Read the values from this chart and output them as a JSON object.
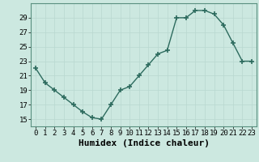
{
  "x": [
    0,
    1,
    2,
    3,
    4,
    5,
    6,
    7,
    8,
    9,
    10,
    11,
    12,
    13,
    14,
    15,
    16,
    17,
    18,
    19,
    20,
    21,
    22,
    23
  ],
  "y": [
    22,
    20,
    19,
    18,
    17,
    16,
    15.2,
    15,
    17,
    19,
    19.5,
    21,
    22.5,
    24,
    24.5,
    29,
    29,
    30,
    30,
    29.5,
    28,
    25.5,
    23,
    23
  ],
  "line_color": "#2d6b5e",
  "marker_color": "#2d6b5e",
  "bg_color": "#cce8e0",
  "grid_color": "#b8d8d0",
  "xlabel": "Humidex (Indice chaleur)",
  "ylim": [
    14,
    31
  ],
  "yticks": [
    15,
    17,
    19,
    21,
    23,
    25,
    27,
    29
  ],
  "xlim": [
    -0.5,
    23.5
  ],
  "xticks": [
    0,
    1,
    2,
    3,
    4,
    5,
    6,
    7,
    8,
    9,
    10,
    11,
    12,
    13,
    14,
    15,
    16,
    17,
    18,
    19,
    20,
    21,
    22,
    23
  ],
  "xlabel_fontsize": 8,
  "tick_fontsize": 6.5,
  "marker_size": 4,
  "line_width": 1.0
}
